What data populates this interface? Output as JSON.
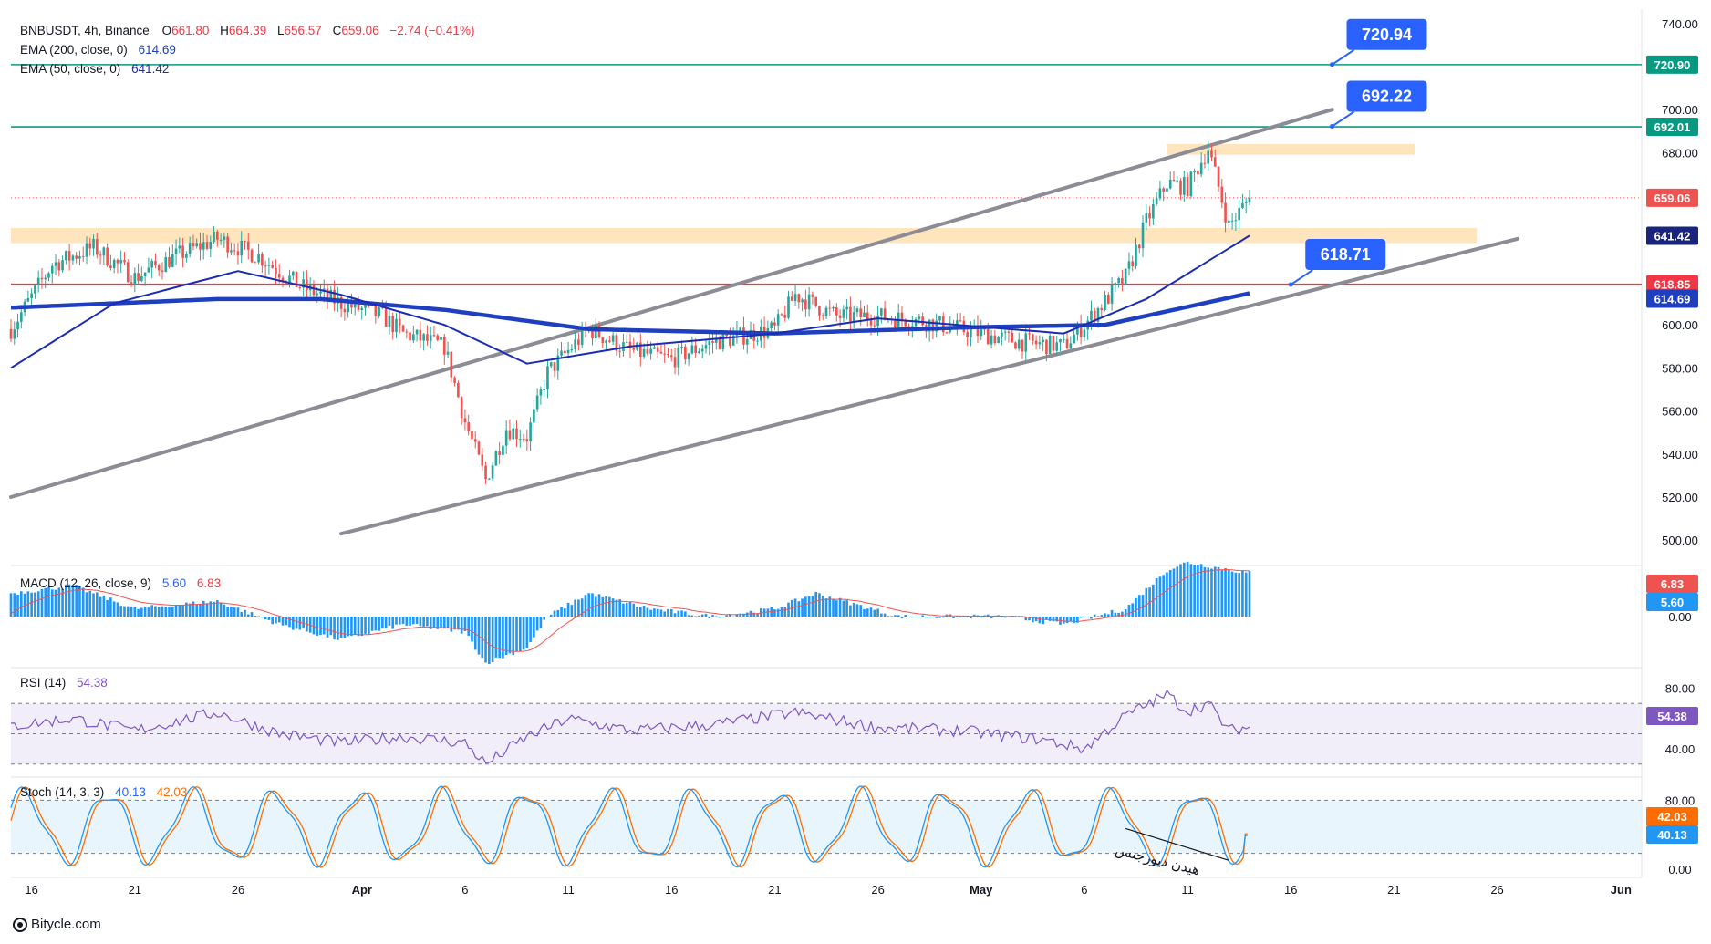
{
  "header": {
    "symbol": "BNBUSDT, 4h, Binance",
    "open_label": "O",
    "open": "661.80",
    "high_label": "H",
    "high": "664.39",
    "low_label": "L",
    "low": "656.57",
    "close_label": "C",
    "close": "659.06",
    "change": "−2.74 (−0.41%)"
  },
  "legend": {
    "ema200_label": "EMA (200, close, 0)",
    "ema200_value": "614.69",
    "ema50_label": "EMA (50, close, 0)",
    "ema50_value": "641.42",
    "macd_label": "MACD (12, 26, close, 9)",
    "macd_value": "5.60",
    "signal_value": "6.83",
    "rsi_label": "RSI (14)",
    "rsi_value": "54.38",
    "stoch_label": "Stoch (14, 3, 3)",
    "stoch_k": "40.13",
    "stoch_d": "42.03"
  },
  "price_axis_ticks": [
    "740.00",
    "720.00",
    "700.00",
    "680.00",
    "660.00",
    "640.00",
    "620.00",
    "600.00",
    "580.00",
    "560.00",
    "540.00",
    "520.00",
    "500.00"
  ],
  "macd_axis_ticks": [
    "0.00"
  ],
  "rsi_axis_ticks": [
    "80.00",
    "40.00"
  ],
  "stoch_axis_ticks": [
    "80.00",
    "0.00"
  ],
  "time_axis_ticks": [
    "16",
    "21",
    "26",
    "Apr",
    "6",
    "11",
    "16",
    "21",
    "26",
    "May",
    "6",
    "11",
    "16",
    "21",
    "26",
    "Jun"
  ],
  "price_tags": {
    "r720": "720.90",
    "r692": "692.01",
    "last": "659.06",
    "ema50": "641.42",
    "s618": "618.85",
    "ema200": "614.69",
    "macd_signal": "6.83",
    "macd": "5.60",
    "rsi": "54.38",
    "stoch_d": "42.03",
    "stoch_k": "40.13"
  },
  "callouts": [
    "720.94",
    "692.22",
    "618.71"
  ],
  "annotation_text": "هیدن دیورجنس",
  "watermark": "Bitycle.com",
  "colors": {
    "up": "#26a69a",
    "down": "#ef5350",
    "ema200": "#1e3fbf",
    "ema50": "#1a2cb5",
    "resistance": "#089981",
    "support": "#f23645",
    "channel": "#8c8c96",
    "zone": "#ffe0b2",
    "callout": "#2962ff",
    "macd_hist": "#2196f3",
    "rsi": "#7e57c2",
    "stoch_k": "#2196f3",
    "stoch_d": "#ff6d00"
  },
  "chart_data": [
    {
      "type": "candlestick",
      "symbol": "BNBUSDT",
      "timeframe": "4h",
      "ylim": [
        495,
        745
      ],
      "x_range": [
        "Mar 15",
        "Jun 2"
      ],
      "last_bar": "May 14",
      "anchors": [
        {
          "x": "Mar 15",
          "price": 598
        },
        {
          "x": "Mar 17",
          "price": 628
        },
        {
          "x": "Mar 19",
          "price": 636
        },
        {
          "x": "Mar 21",
          "price": 622
        },
        {
          "x": "Mar 23",
          "price": 632
        },
        {
          "x": "Mar 25",
          "price": 640
        },
        {
          "x": "Mar 27",
          "price": 632
        },
        {
          "x": "Mar 29",
          "price": 618
        },
        {
          "x": "Mar 31",
          "price": 610
        },
        {
          "x": "Apr 2",
          "price": 604
        },
        {
          "x": "Apr 3",
          "price": 596
        },
        {
          "x": "Apr 5",
          "price": 590
        },
        {
          "x": "Apr 6",
          "price": 555
        },
        {
          "x": "Apr 7",
          "price": 528
        },
        {
          "x": "Apr 8",
          "price": 552
        },
        {
          "x": "Apr 9",
          "price": 548
        },
        {
          "x": "Apr 10",
          "price": 578
        },
        {
          "x": "Apr 12",
          "price": 598
        },
        {
          "x": "Apr 14",
          "price": 588
        },
        {
          "x": "Apr 16",
          "price": 584
        },
        {
          "x": "Apr 18",
          "price": 592
        },
        {
          "x": "Apr 21",
          "price": 598
        },
        {
          "x": "Apr 22",
          "price": 614
        },
        {
          "x": "Apr 24",
          "price": 604
        },
        {
          "x": "Apr 26",
          "price": 604
        },
        {
          "x": "Apr 28",
          "price": 602
        },
        {
          "x": "May 1",
          "price": 596
        },
        {
          "x": "May 3",
          "price": 592
        },
        {
          "x": "May 5",
          "price": 590
        },
        {
          "x": "May 6",
          "price": 600
        },
        {
          "x": "May 8",
          "price": 622
        },
        {
          "x": "May 9",
          "price": 648
        },
        {
          "x": "May 10",
          "price": 666
        },
        {
          "x": "May 11",
          "price": 664
        },
        {
          "x": "May 12",
          "price": 682
        },
        {
          "x": "May 13",
          "price": 646
        },
        {
          "x": "May 14",
          "price": 659
        }
      ],
      "ema200": [
        {
          "x": "Mar 15",
          "value": 608
        },
        {
          "x": "Mar 25",
          "value": 612
        },
        {
          "x": "Mar 30",
          "value": 612
        },
        {
          "x": "Apr 5",
          "value": 607
        },
        {
          "x": "Apr 12",
          "value": 598
        },
        {
          "x": "Apr 21",
          "value": 596
        },
        {
          "x": "May 1",
          "value": 599
        },
        {
          "x": "May 7",
          "value": 600
        },
        {
          "x": "May 14",
          "value": 614.69
        }
      ],
      "ema50": [
        {
          "x": "Mar 15",
          "value": 580
        },
        {
          "x": "Mar 20",
          "value": 610
        },
        {
          "x": "Mar 26",
          "value": 625
        },
        {
          "x": "Mar 31",
          "value": 614
        },
        {
          "x": "Apr 5",
          "value": 600
        },
        {
          "x": "Apr 9",
          "value": 582
        },
        {
          "x": "Apr 14",
          "value": 590
        },
        {
          "x": "Apr 21",
          "value": 596
        },
        {
          "x": "Apr 26",
          "value": 603
        },
        {
          "x": "May 5",
          "value": 596
        },
        {
          "x": "May 9",
          "value": 612
        },
        {
          "x": "May 14",
          "value": 641.42
        }
      ],
      "horizontal_levels": [
        {
          "value": 720.9,
          "kind": "resistance"
        },
        {
          "value": 692.01,
          "kind": "resistance"
        },
        {
          "value": 618.85,
          "kind": "support"
        },
        {
          "value": 659.06,
          "kind": "last-price"
        }
      ],
      "zones": [
        {
          "from": "Mar 15",
          "to": "May 25",
          "low": 638,
          "high": 645
        },
        {
          "from": "May 10",
          "to": "May 22",
          "low": 679,
          "high": 684
        }
      ],
      "trendlines": [
        {
          "from": {
            "x": "Mar 15",
            "price": 520
          },
          "to": {
            "x": "May 18",
            "price": 700
          }
        },
        {
          "from": {
            "x": "Mar 31",
            "price": 503
          },
          "to": {
            "x": "May 27",
            "price": 640
          }
        }
      ],
      "callouts": [
        {
          "text": "720.94",
          "x": "May 18",
          "price": 720.94
        },
        {
          "text": "692.22",
          "x": "May 18",
          "price": 692.22
        },
        {
          "text": "618.71",
          "x": "May 16",
          "price": 618.71
        }
      ]
    },
    {
      "type": "histogram",
      "indicator": "MACD (12, 26, close, 9)",
      "macd": 5.6,
      "signal": 6.83,
      "anchors": [
        {
          "x": "Mar 15",
          "value": 3
        },
        {
          "x": "Mar 18",
          "value": 4
        },
        {
          "x": "Mar 21",
          "value": 1
        },
        {
          "x": "Mar 25",
          "value": 2
        },
        {
          "x": "Mar 28",
          "value": -1
        },
        {
          "x": "Mar 31",
          "value": -3
        },
        {
          "x": "Apr 3",
          "value": -1
        },
        {
          "x": "Apr 6",
          "value": -2
        },
        {
          "x": "Apr 7",
          "value": -6
        },
        {
          "x": "Apr 9",
          "value": -4
        },
        {
          "x": "Apr 10",
          "value": 0
        },
        {
          "x": "Apr 12",
          "value": 3
        },
        {
          "x": "Apr 15",
          "value": 1
        },
        {
          "x": "Apr 18",
          "value": 0
        },
        {
          "x": "Apr 21",
          "value": 1
        },
        {
          "x": "Apr 23",
          "value": 3
        },
        {
          "x": "Apr 27",
          "value": 0
        },
        {
          "x": "May 2",
          "value": 0
        },
        {
          "x": "May 5",
          "value": -1
        },
        {
          "x": "May 8",
          "value": 1
        },
        {
          "x": "May 10",
          "value": 6
        },
        {
          "x": "May 11",
          "value": 7
        },
        {
          "x": "May 14",
          "value": 5.6
        }
      ]
    },
    {
      "type": "line",
      "indicator": "RSI (14)",
      "ylim": [
        25,
        90
      ],
      "bands": [
        70,
        30
      ],
      "last": 54.38,
      "anchors": [
        {
          "x": "Mar 15",
          "value": 55
        },
        {
          "x": "Mar 18",
          "value": 60
        },
        {
          "x": "Mar 21",
          "value": 52
        },
        {
          "x": "Mar 25",
          "value": 64
        },
        {
          "x": "Mar 28",
          "value": 50
        },
        {
          "x": "Mar 31",
          "value": 44
        },
        {
          "x": "Apr 3",
          "value": 48
        },
        {
          "x": "Apr 6",
          "value": 44
        },
        {
          "x": "Apr 7",
          "value": 30
        },
        {
          "x": "Apr 9",
          "value": 48
        },
        {
          "x": "Apr 11",
          "value": 60
        },
        {
          "x": "Apr 14",
          "value": 52
        },
        {
          "x": "Apr 18",
          "value": 56
        },
        {
          "x": "Apr 22",
          "value": 64
        },
        {
          "x": "Apr 26",
          "value": 54
        },
        {
          "x": "Apr 30",
          "value": 52
        },
        {
          "x": "May 4",
          "value": 46
        },
        {
          "x": "May 6",
          "value": 40
        },
        {
          "x": "May 8",
          "value": 62
        },
        {
          "x": "May 10",
          "value": 76
        },
        {
          "x": "May 11",
          "value": 65
        },
        {
          "x": "May 12",
          "value": 70
        },
        {
          "x": "May 13",
          "value": 52
        },
        {
          "x": "May 14",
          "value": 54.38
        }
      ]
    },
    {
      "type": "line",
      "indicator": "Stoch (14, 3, 3)",
      "ylim": [
        0,
        100
      ],
      "bands": [
        80,
        20
      ],
      "k_last": 40.13,
      "d_last": 42.03,
      "divergence_line": {
        "from": {
          "x": "May 8",
          "value": 48
        },
        "to": {
          "x": "May 13",
          "value": 12
        }
      },
      "annotation": "هیدن دیورجنس"
    }
  ]
}
